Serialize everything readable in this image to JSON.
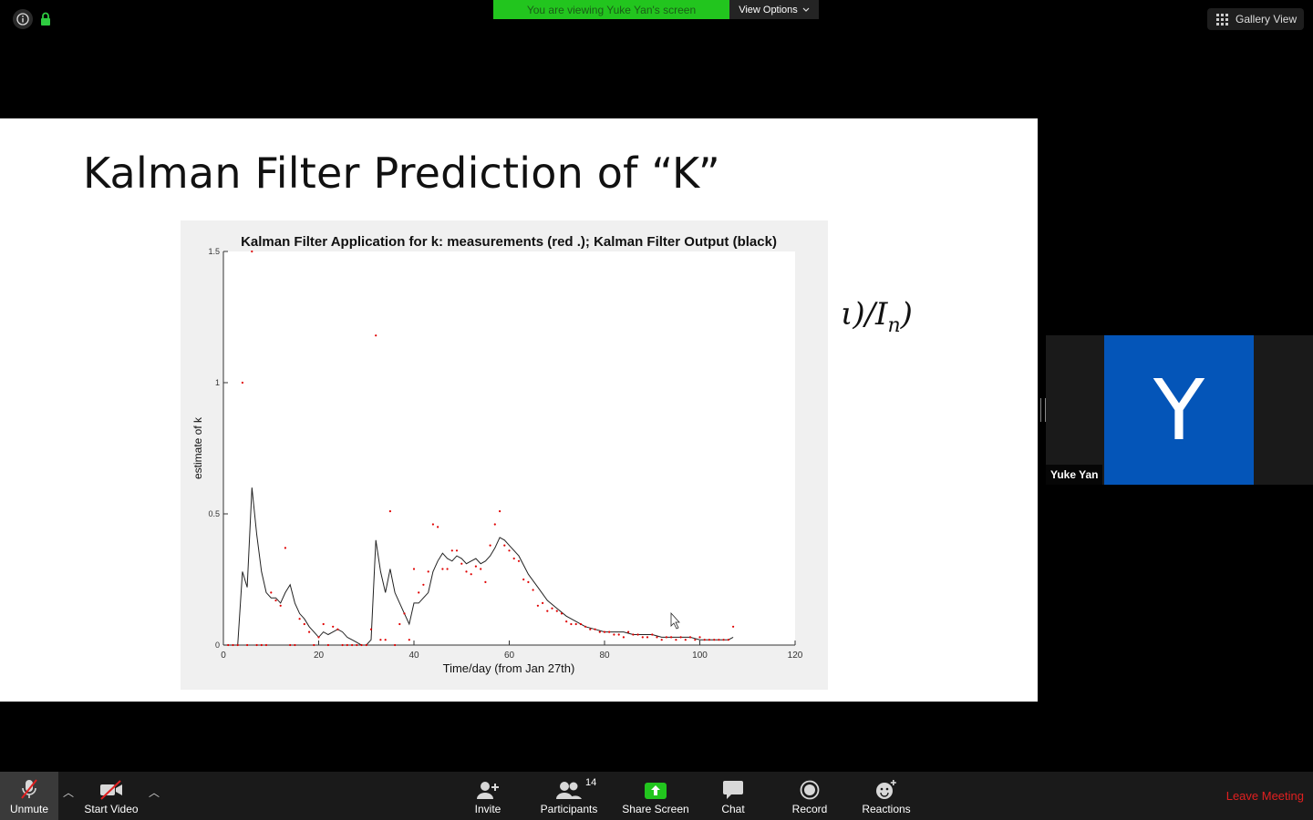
{
  "banner": {
    "viewing_text": "You are viewing Yuke Yan's screen",
    "view_options_label": "View Options"
  },
  "gallery_view_label": "Gallery View",
  "slide": {
    "title": "Kalman Filter Prediction of “K”",
    "formula_fragment": "ι)/I",
    "formula_sub": "n",
    "formula_close": ")"
  },
  "chart_data": {
    "type": "scatter",
    "title": "Kalman Filter Application for k: measurements (red .); Kalman Filter Output (black)",
    "xlabel": "Time/day  (from Jan 27th)",
    "ylabel": "estimate of k",
    "xlim": [
      0,
      120
    ],
    "ylim": [
      0,
      1.5
    ],
    "xticks": [
      0,
      20,
      40,
      60,
      80,
      100,
      120
    ],
    "yticks": [
      0,
      0.5,
      1,
      1.5
    ],
    "ytick_labels": [
      "0",
      "0.5",
      "1",
      "1.5"
    ],
    "series": [
      {
        "color": "#e00000",
        "x": [
          1,
          2,
          3,
          4,
          5,
          6,
          7,
          8,
          9,
          10,
          11,
          12,
          13,
          14,
          15,
          16,
          17,
          18,
          19,
          20,
          21,
          22,
          23,
          24,
          25,
          26,
          27,
          28,
          29,
          30,
          31,
          32,
          33,
          34,
          35,
          36,
          37,
          38,
          39,
          40,
          41,
          42,
          43,
          44,
          45,
          46,
          47,
          48,
          49,
          50,
          51,
          52,
          53,
          54,
          55,
          56,
          57,
          58,
          59,
          60,
          61,
          62,
          63,
          64,
          65,
          66,
          67,
          68,
          69,
          70,
          71,
          72,
          73,
          74,
          75,
          76,
          77,
          78,
          79,
          80,
          81,
          82,
          83,
          84,
          85,
          86,
          87,
          88,
          89,
          90,
          91,
          92,
          93,
          94,
          95,
          96,
          97,
          98,
          99,
          100,
          101,
          102,
          103,
          104,
          105,
          106,
          107
        ],
        "y": [
          0,
          0,
          0,
          1.0,
          0,
          1.5,
          0,
          0,
          0,
          0.2,
          0.17,
          0.15,
          0.37,
          0,
          0,
          0.1,
          0.08,
          0.05,
          0,
          0.03,
          0.08,
          0,
          0.07,
          0.06,
          0,
          0,
          0,
          0,
          0,
          0,
          0.06,
          1.18,
          0.02,
          0.02,
          0.51,
          0,
          0.08,
          0.12,
          0.02,
          0.29,
          0.2,
          0.23,
          0.28,
          0.46,
          0.45,
          0.29,
          0.29,
          0.36,
          0.36,
          0.31,
          0.28,
          0.27,
          0.3,
          0.29,
          0.24,
          0.38,
          0.46,
          0.51,
          0.38,
          0.36,
          0.33,
          0.32,
          0.25,
          0.24,
          0.21,
          0.15,
          0.16,
          0.13,
          0.14,
          0.13,
          0.12,
          0.09,
          0.08,
          0.08,
          0.08,
          0.07,
          0.06,
          0.06,
          0.05,
          0.05,
          0.05,
          0.04,
          0.04,
          0.03,
          0.05,
          0.04,
          0.04,
          0.03,
          0.03,
          0.04,
          0.03,
          0.02,
          0.03,
          0.03,
          0.02,
          0.03,
          0.02,
          0.03,
          0.02,
          0.03,
          0.02,
          0.02,
          0.02,
          0.02,
          0.02,
          0.02,
          0.07
        ]
      },
      {
        "color": "#222222",
        "x": [
          0,
          3,
          4,
          5,
          6,
          7,
          8,
          9,
          10,
          11,
          12,
          13,
          14,
          15,
          16,
          17,
          18,
          19,
          20,
          21,
          22,
          23,
          24,
          25,
          26,
          27,
          28,
          29,
          30,
          31,
          32,
          33,
          34,
          35,
          36,
          37,
          38,
          39,
          40,
          41,
          42,
          43,
          44,
          45,
          46,
          47,
          48,
          49,
          50,
          51,
          52,
          53,
          54,
          55,
          56,
          57,
          58,
          59,
          60,
          62,
          64,
          66,
          68,
          70,
          72,
          74,
          76,
          78,
          80,
          82,
          84,
          86,
          88,
          90,
          92,
          94,
          96,
          98,
          100,
          102,
          104,
          106,
          107
        ],
        "y": [
          0,
          0,
          0.28,
          0.22,
          0.6,
          0.42,
          0.28,
          0.2,
          0.18,
          0.18,
          0.16,
          0.2,
          0.23,
          0.16,
          0.12,
          0.1,
          0.07,
          0.05,
          0.03,
          0.05,
          0.04,
          0.05,
          0.06,
          0.05,
          0.03,
          0.02,
          0.01,
          0.0,
          0.0,
          0.02,
          0.4,
          0.28,
          0.2,
          0.29,
          0.2,
          0.16,
          0.12,
          0.08,
          0.16,
          0.16,
          0.18,
          0.2,
          0.28,
          0.32,
          0.35,
          0.33,
          0.32,
          0.34,
          0.33,
          0.31,
          0.32,
          0.33,
          0.31,
          0.32,
          0.34,
          0.37,
          0.41,
          0.4,
          0.38,
          0.34,
          0.27,
          0.22,
          0.17,
          0.14,
          0.11,
          0.09,
          0.07,
          0.06,
          0.05,
          0.05,
          0.05,
          0.04,
          0.04,
          0.04,
          0.03,
          0.03,
          0.03,
          0.03,
          0.02,
          0.02,
          0.02,
          0.02,
          0.03
        ]
      }
    ]
  },
  "participant": {
    "initial": "Y",
    "name": "Yuke Yan"
  },
  "toolbar": {
    "unmute": "Unmute",
    "start_video": "Start Video",
    "invite": "Invite",
    "participants": "Participants",
    "participants_count": "14",
    "share_screen": "Share Screen",
    "chat": "Chat",
    "record": "Record",
    "reactions": "Reactions",
    "leave": "Leave Meeting"
  }
}
